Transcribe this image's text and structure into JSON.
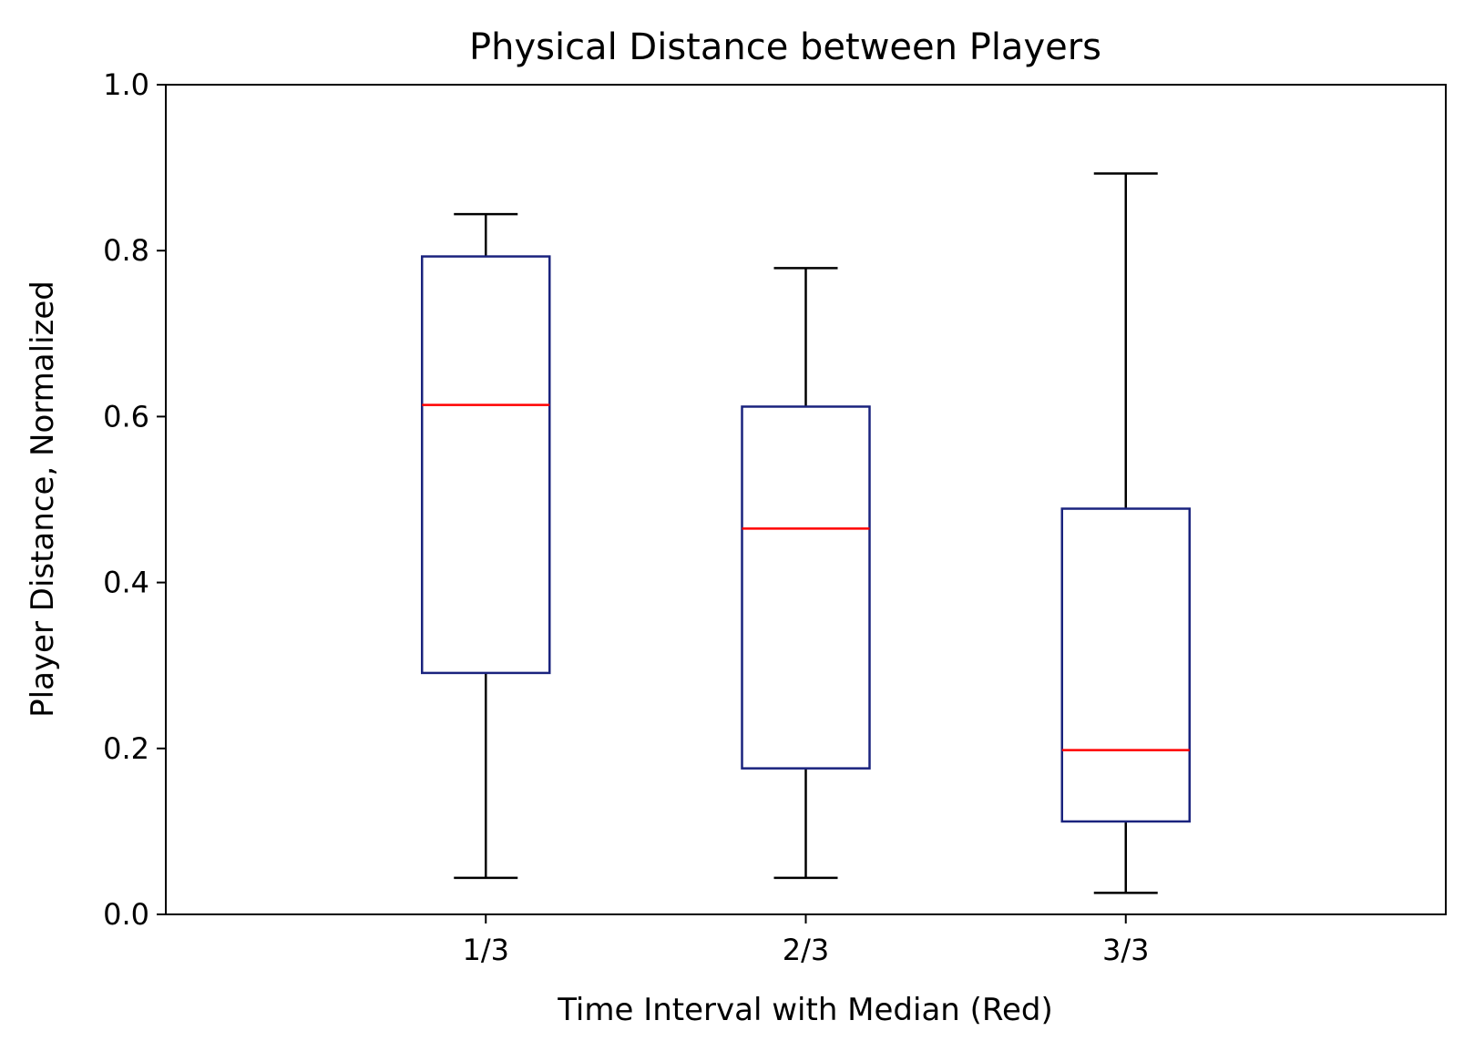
{
  "chart_data": {
    "type": "boxplot",
    "title": "Physical Distance between Players",
    "xlabel": "Time Interval with Median (Red)",
    "ylabel": "Player Distance, Normalized",
    "ylim": [
      0.0,
      1.0
    ],
    "yticks": [
      "0.0",
      "0.2",
      "0.4",
      "0.6",
      "0.8",
      "1.0"
    ],
    "categories": [
      "1/3",
      "2/3",
      "3/3"
    ],
    "boxes": [
      {
        "category": "1/3",
        "whisker_low": 0.044,
        "q1": 0.291,
        "median": 0.614,
        "q3": 0.793,
        "whisker_high": 0.844
      },
      {
        "category": "2/3",
        "whisker_low": 0.044,
        "q1": 0.176,
        "median": 0.465,
        "q3": 0.612,
        "whisker_high": 0.779
      },
      {
        "category": "3/3",
        "whisker_low": 0.026,
        "q1": 0.112,
        "median": 0.198,
        "q3": 0.489,
        "whisker_high": 0.893
      }
    ],
    "grid": false,
    "colors": {
      "box": "#1a237e",
      "median": "#ff0000",
      "whisker": "#000000"
    }
  }
}
